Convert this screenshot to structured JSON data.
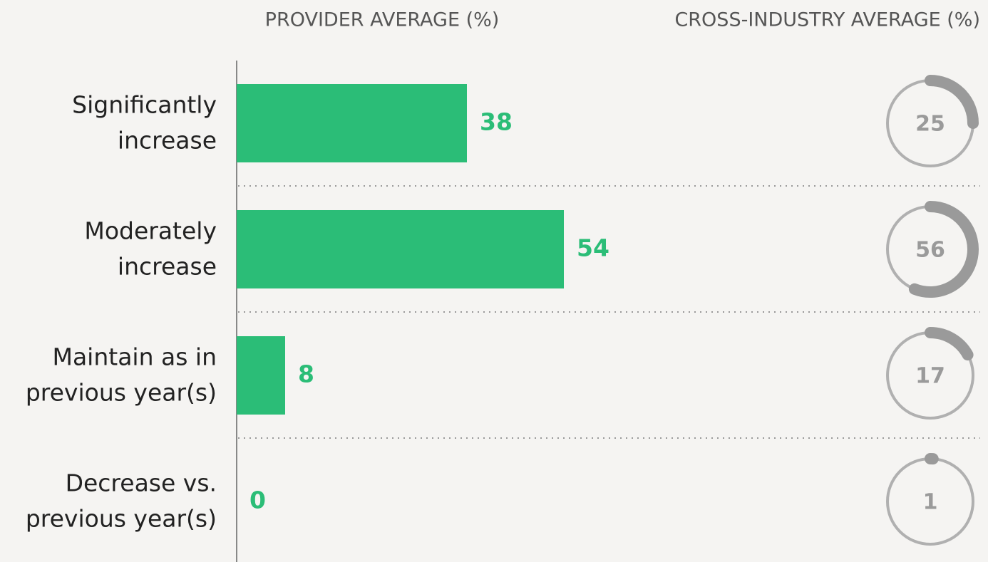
{
  "chart_data": {
    "type": "bar",
    "titles": [
      "PROVIDER AVERAGE (%)",
      "CROSS-INDUSTRY AVERAGE (%)"
    ],
    "categories": [
      [
        "Significantly",
        "increase"
      ],
      [
        "Moderately",
        "increase"
      ],
      [
        "Maintain as in",
        "previous year(s)"
      ],
      [
        "Decrease vs.",
        "previous year(s)"
      ]
    ],
    "xlim": [
      0,
      100
    ],
    "series": [
      {
        "name": "PROVIDER AVERAGE (%)",
        "color": "#2bbd77",
        "values": [
          38,
          54,
          8,
          0
        ]
      },
      {
        "name": "CROSS-INDUSTRY AVERAGE (%)",
        "color": "#9a9a9a",
        "values": [
          25,
          56,
          17,
          1
        ]
      }
    ]
  }
}
